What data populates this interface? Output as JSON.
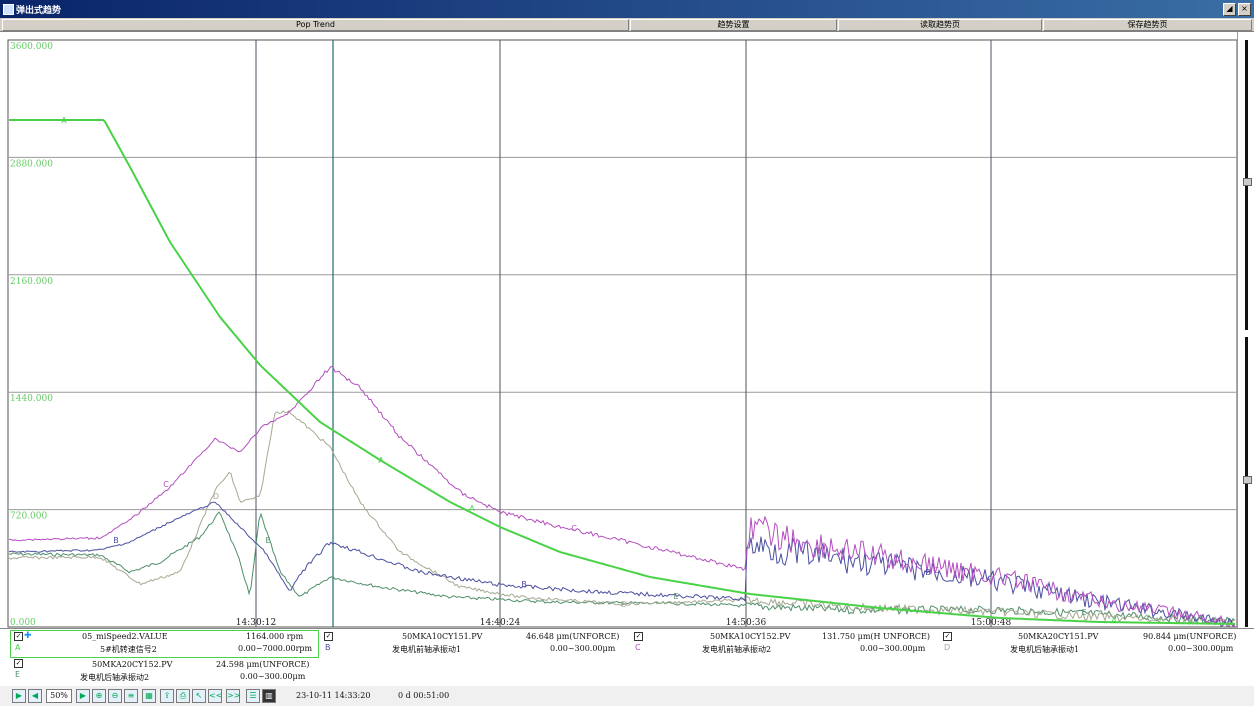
{
  "window": {
    "title": "弹出式趋势",
    "buttons": [
      "◢",
      "×"
    ]
  },
  "menu": [
    {
      "label": "Pop Trend"
    },
    {
      "label": "趋势设置"
    },
    {
      "label": "读取趋势页"
    },
    {
      "label": "保存趋势页"
    }
  ],
  "chart_data": {
    "type": "line",
    "ylim": [
      0,
      3600
    ],
    "ytick_labels": [
      "0.000",
      "720.000",
      "1440.000",
      "2160.000",
      "2880.000",
      "3600.000"
    ],
    "xtick_labels": [
      "14:30:12",
      "14:40:24",
      "14:50:36",
      "15:00:48"
    ],
    "grid": true,
    "series_colors": {
      "A": "#49d247",
      "B": "#4b4fa0",
      "C": "#b44ec0",
      "D": "#a6a892",
      "E": "#4f8f6a"
    },
    "markers": {
      "A": "A",
      "B": "B",
      "C": "C",
      "D": "D",
      "E": "E"
    }
  },
  "legend": {
    "entries": [
      {
        "letter": "A",
        "tag": "05_miSpeed2.VALUE",
        "value": "1164.000 rpm",
        "desc": "5#机转速信号2",
        "range": "0.00~7000.00rpm"
      },
      {
        "letter": "B",
        "tag": "50MKA10CY151.PV",
        "value": "46.648 μm(UNFORCE)",
        "desc": "发电机前轴承振动1",
        "range": "0.00~300.00μm"
      },
      {
        "letter": "C",
        "tag": "50MKA10CY152.PV",
        "value": "131.750 μm(H UNFORCE)",
        "desc": "发电机前轴承振动2",
        "range": "0.00~300.00μm"
      },
      {
        "letter": "D",
        "tag": "50MKA20CY151.PV",
        "value": "90.844 μm(UNFORCE)",
        "desc": "发电机后轴承振动1",
        "range": "0.00~300.00μm"
      },
      {
        "letter": "E",
        "tag": "50MKA20CY152.PV",
        "value": "24.598 μm(UNFORCE)",
        "desc": "发电机后轴承振动2",
        "range": "0.00~300.00μm"
      }
    ]
  },
  "toolbar": {
    "zoom": "50%",
    "buttons": [
      "play-icon",
      "back-icon",
      "forward-icon",
      "zoom-in-icon",
      "zoom-out-icon",
      "list-icon",
      "calendar-icon",
      "export-icon",
      "print-icon",
      "cursor-icon",
      "<<",
      ">>",
      "table-icon",
      "grid-icon"
    ],
    "datetime": "23-10-11 14:33:20",
    "duration": "0 d 00:51:00"
  }
}
